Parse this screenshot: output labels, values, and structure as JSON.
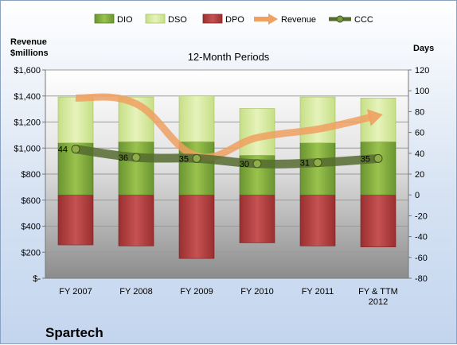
{
  "colors": {
    "dio": "#7fa83c",
    "dso": "#d7ea9c",
    "dpo": "#b23e3e",
    "revenue": "#f0a060",
    "ccc": "#556b2f"
  },
  "chart_data": {
    "type": "bar",
    "company": "Spartech",
    "subtitle": "12-Month Periods",
    "left_axis_title": [
      "Revenue",
      "$millions"
    ],
    "right_axis_title": "Days",
    "categories": [
      [
        "FY 2007"
      ],
      [
        "FY 2008"
      ],
      [
        "FY 2009"
      ],
      [
        "FY 2010"
      ],
      [
        "FY 2011"
      ],
      [
        "FY & TTM",
        "2012"
      ]
    ],
    "left_ticks": [
      "$-",
      "$200",
      "$400",
      "$600",
      "$800",
      "$1,000",
      "$1,200",
      "$1,400",
      "$1,600"
    ],
    "right_ticks": [
      "-80",
      "-60",
      "-40",
      "-20",
      "0",
      "20",
      "40",
      "60",
      "80",
      "100",
      "120"
    ],
    "left_ylim": [
      0,
      1600
    ],
    "right_ylim": [
      -80,
      120
    ],
    "legend": [
      "DIO",
      "DSO",
      "DPO",
      "Revenue",
      "CCC"
    ],
    "series": [
      {
        "name": "DIO",
        "values": [
          50,
          51,
          51,
          38,
          50,
          51
        ]
      },
      {
        "name": "DSO",
        "values": [
          44,
          43,
          44,
          45,
          44,
          42
        ]
      },
      {
        "name": "DPO",
        "values": [
          -48,
          -49,
          -61,
          -46,
          -49,
          -50
        ]
      },
      {
        "name": "Revenue",
        "values": [
          1385,
          1340,
          940,
          1080,
          1145,
          1250
        ]
      },
      {
        "name": "CCC",
        "values": [
          44,
          36,
          35,
          30,
          31,
          35
        ]
      }
    ],
    "ccc_labels": [
      "44",
      "36",
      "35",
      "30",
      "31",
      "35"
    ]
  }
}
